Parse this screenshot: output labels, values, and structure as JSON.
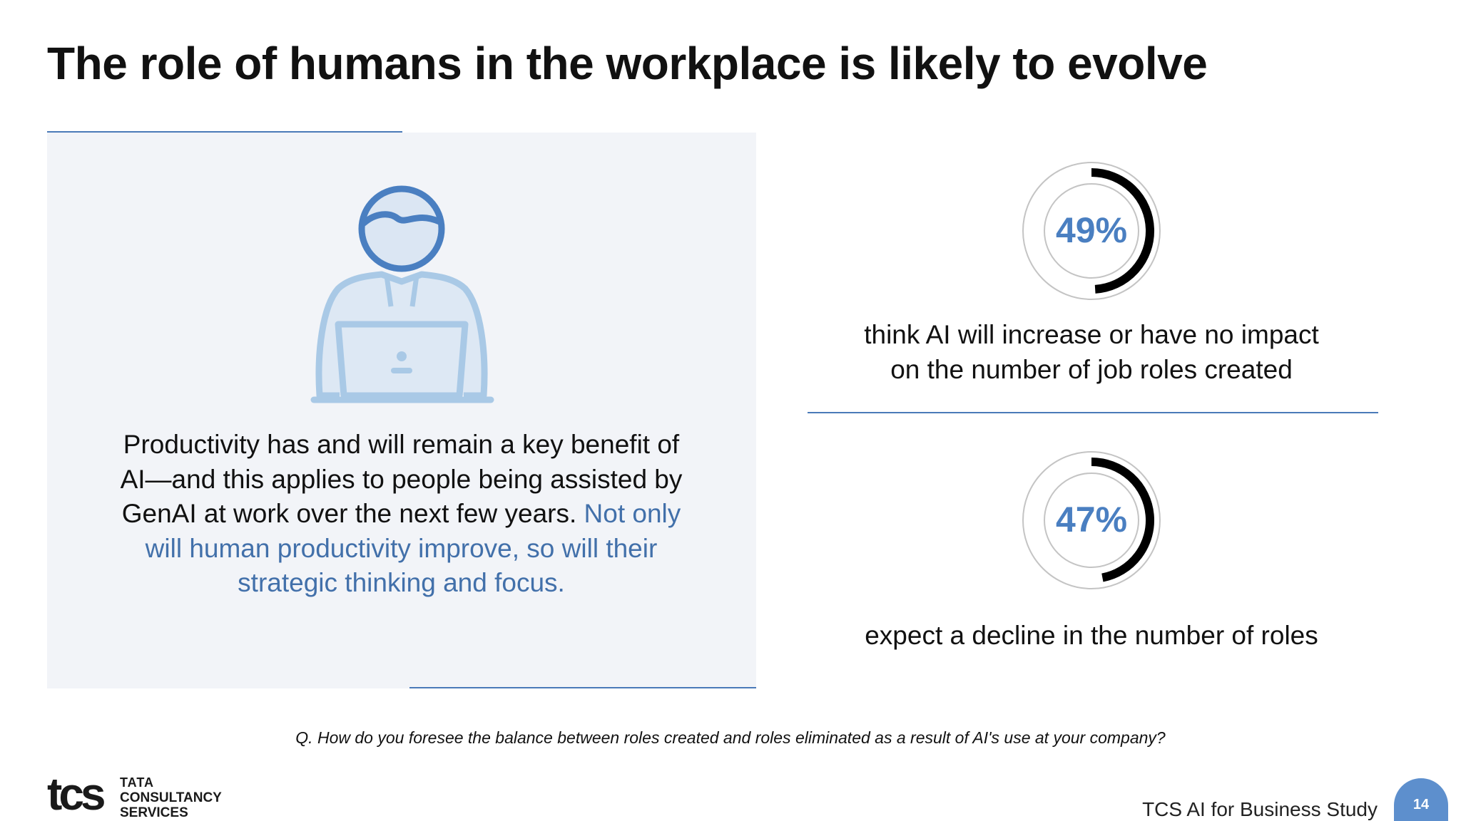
{
  "slide": {
    "title": "The role of humans in the workplace is likely to evolve"
  },
  "panel": {
    "illustration_icon": "person-at-laptop-icon",
    "text_intro": "Productivity has and will remain a key benefit of AI—and this applies to people being assisted by GenAI at work over the next few years.",
    "text_highlight": "Not only will human productivity improve, so will their strategic thinking and focus.",
    "highlight_color": "#4270aa",
    "background_color": "#f2f4f8"
  },
  "stats": [
    {
      "value": "49%",
      "fraction": 0.49,
      "label_line1": "think AI will increase or have no impact",
      "label_line2": "on the number of job roles created"
    },
    {
      "value": "47%",
      "fraction": 0.47,
      "label_line1": "expect a decline in the number of roles"
    }
  ],
  "question": "Q. How do you foresee the balance between roles created and roles eliminated as a result of AI's use at your company?",
  "footer": {
    "logo_mark": "tcs",
    "logo_line1": "TATA",
    "logo_line2": "CONSULTANCY",
    "logo_line3": "SERVICES",
    "study_name": "TCS AI for Business Study",
    "page_number": "14",
    "accent_color": "#5d8fcd"
  }
}
